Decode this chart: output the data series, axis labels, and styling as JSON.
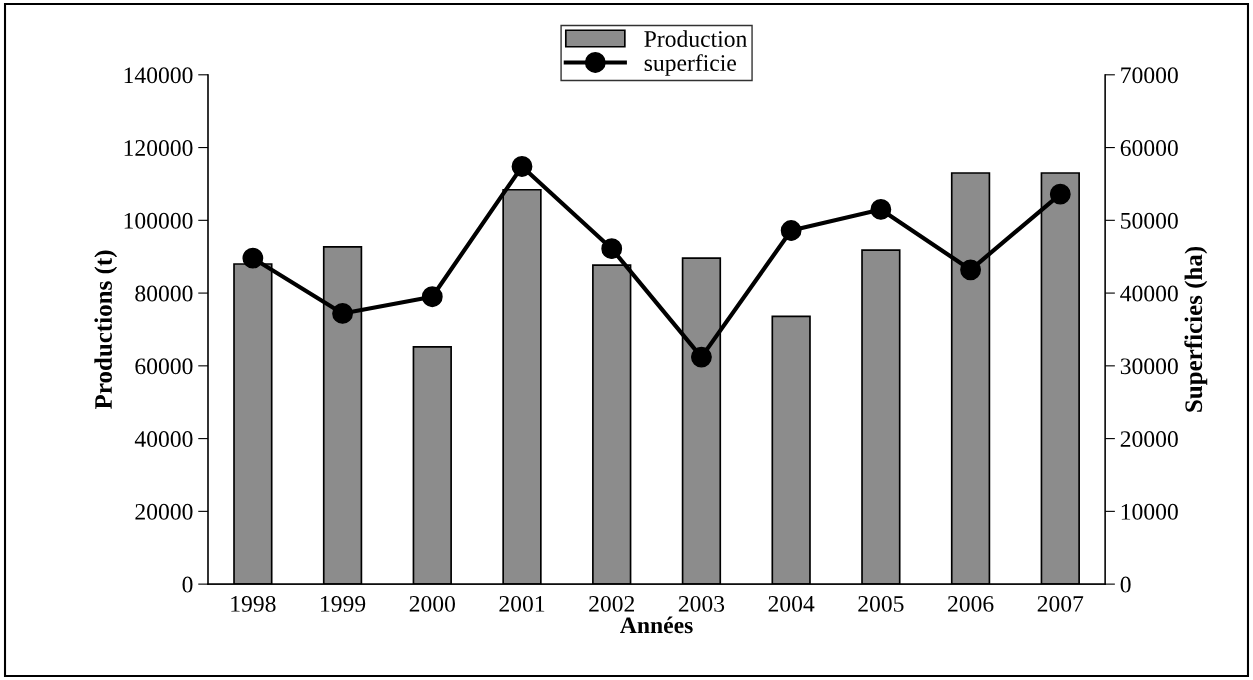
{
  "chart_data": {
    "type": "bar",
    "xlabel": "Années",
    "ylabel": "Productions (t)",
    "y2label": "Superficies (ha)",
    "categories": [
      "1998",
      "1999",
      "2000",
      "2001",
      "2002",
      "2003",
      "2004",
      "2005",
      "2006",
      "2007"
    ],
    "series": [
      {
        "name": "Production",
        "color": "#8c8c8c",
        "values": [
          88000,
          92700,
          65200,
          108400,
          87700,
          89600,
          73600,
          91800,
          113000,
          113000
        ]
      },
      {
        "name": "superficie",
        "type": "line",
        "axis": "y2",
        "color": "#000000",
        "marker": "circle",
        "line_style": "solid",
        "values": [
          44800,
          37200,
          39500,
          57400,
          46100,
          31200,
          48600,
          51500,
          43200,
          53600
        ]
      }
    ],
    "ylim": [
      0,
      140000
    ],
    "yticks": [
      0,
      20000,
      40000,
      60000,
      80000,
      100000,
      120000,
      140000
    ],
    "y2lim": [
      0,
      70000
    ],
    "y2ticks": [
      0,
      10000,
      20000,
      30000,
      40000,
      50000,
      60000,
      70000
    ],
    "grid": false,
    "legend": "top"
  }
}
